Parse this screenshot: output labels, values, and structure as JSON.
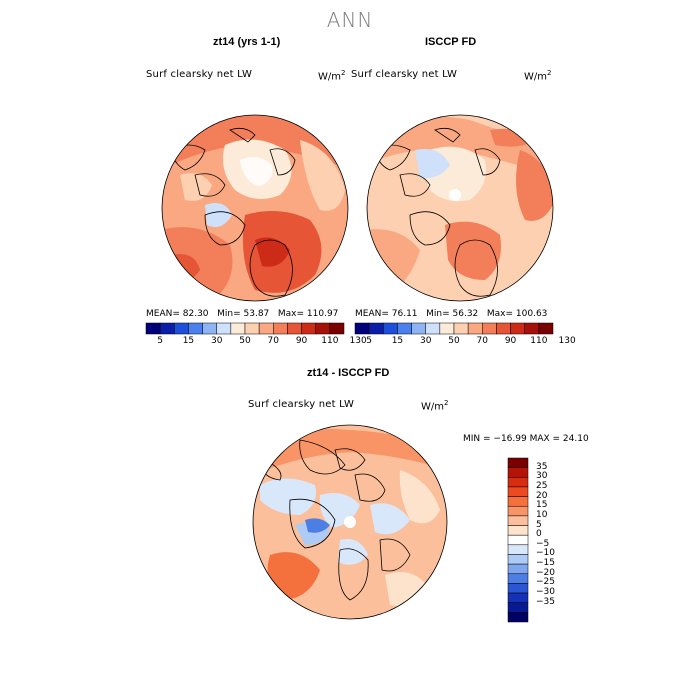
{
  "page": {
    "title": "ANN"
  },
  "panels": [
    {
      "title": "zt14 (yrs 1-1)",
      "variable": "Surf clearsky net LW",
      "units_base": "W/m",
      "units_exp": "2",
      "mean_label": "MEAN=",
      "mean": "82.30",
      "min_label": "Min=",
      "min": "53.87",
      "max_label": "Max=",
      "max": "110.97"
    },
    {
      "title": "ISCCP FD",
      "variable": "Surf clearsky net LW",
      "units_base": "W/m",
      "units_exp": "2",
      "mean_label": "MEAN=",
      "mean": "76.11",
      "min_label": "Min=",
      "min": "56.32",
      "max_label": "Max=",
      "max": "100.63"
    }
  ],
  "difference": {
    "title": "zt14 - ISCCP FD",
    "variable": "Surf clearsky net LW",
    "units_base": "W/m",
    "units_exp": "2",
    "range_text": "MIN = −16.99 MAX =  24.10"
  },
  "chart_data": [
    {
      "type": "heatmap",
      "title": "zt14 (yrs 1-1)",
      "projection": "polar stereographic, Northern Hemisphere",
      "mean": 82.3,
      "min": 53.87,
      "max": 110.97,
      "units": "W/m2",
      "colorbar_levels": [
        5,
        15,
        30,
        50,
        70,
        90,
        110,
        130
      ],
      "colorbar_colors": [
        "#00007a",
        "#0a1ea8",
        "#1d4fdb",
        "#4a7fee",
        "#8fb4f5",
        "#cfe0fa",
        "#fdebd9",
        "#fcd0b0",
        "#f9a882",
        "#f27f5a",
        "#e65535",
        "#cc2b18",
        "#a51008",
        "#7a0000"
      ]
    },
    {
      "type": "heatmap",
      "title": "ISCCP FD",
      "projection": "polar stereographic, Northern Hemisphere",
      "mean": 76.11,
      "min": 56.32,
      "max": 100.63,
      "units": "W/m2",
      "colorbar_levels": [
        5,
        15,
        30,
        50,
        70,
        90,
        110,
        130
      ],
      "colorbar_colors": [
        "#00007a",
        "#0a1ea8",
        "#1d4fdb",
        "#4a7fee",
        "#8fb4f5",
        "#cfe0fa",
        "#fdebd9",
        "#fcd0b0",
        "#f9a882",
        "#f27f5a",
        "#e65535",
        "#cc2b18",
        "#a51008",
        "#7a0000"
      ]
    },
    {
      "type": "heatmap",
      "title": "zt14 - ISCCP FD",
      "projection": "polar stereographic, Northern Hemisphere",
      "min": -16.99,
      "max": 24.1,
      "units": "W/m2",
      "colorbar_levels_display": [
        "35",
        "30",
        "25",
        "20",
        "15",
        "10",
        "5",
        "0",
        "−5",
        "−10",
        "−15",
        "−20",
        "−25",
        "−30",
        "−35"
      ],
      "colorbar_colors_top_to_bottom": [
        "#7a0000",
        "#b51208",
        "#d92b10",
        "#ee4a20",
        "#f4713d",
        "#f89465",
        "#fbbf9c",
        "#fde3cc",
        "#ffffff",
        "#d9e7fb",
        "#aecbf6",
        "#7fa6ef",
        "#4d7ee4",
        "#2a55d4",
        "#1431b8",
        "#071a93",
        "#000066"
      ]
    }
  ]
}
